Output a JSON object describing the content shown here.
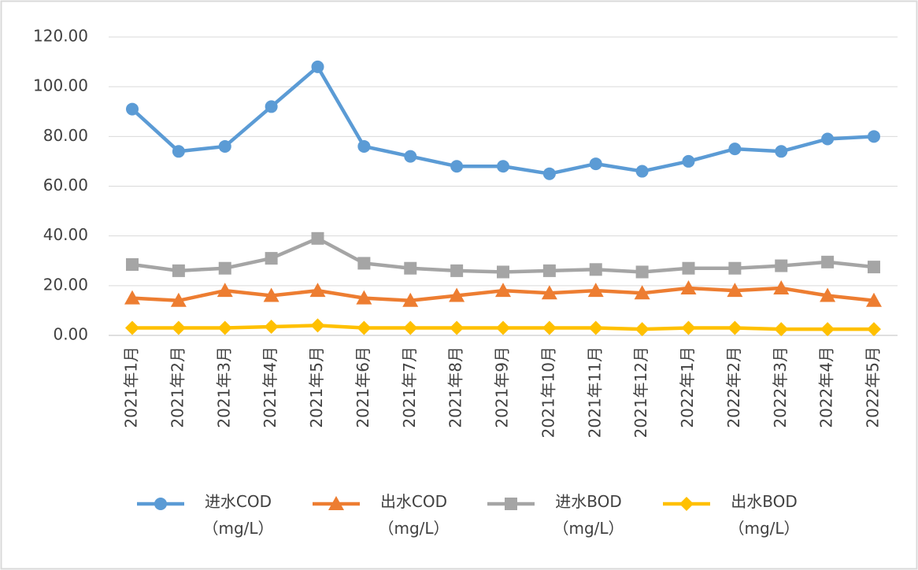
{
  "chart_data": {
    "type": "line",
    "categories": [
      "2021年1月",
      "2021年2月",
      "2021年3月",
      "2021年4月",
      "2021年5月",
      "2021年6月",
      "2021年7月",
      "2021年8月",
      "2021年9月",
      "2021年10月",
      "2021年11月",
      "2021年12月",
      "2022年1月",
      "2022年2月",
      "2022年3月",
      "2022年4月",
      "2022年5月"
    ],
    "series": [
      {
        "name": "进水COD（mg/L）",
        "color": "#5b9bd5",
        "marker": "circle",
        "values": [
          91,
          74,
          76,
          92,
          108,
          76,
          72,
          68,
          68,
          65,
          69,
          66,
          70,
          75,
          74,
          79,
          80
        ]
      },
      {
        "name": "出水COD（mg/L）",
        "color": "#ed7d31",
        "marker": "triangle",
        "values": [
          15,
          14,
          18,
          16,
          18,
          15,
          14,
          16,
          18,
          17,
          18,
          17,
          19,
          18,
          19,
          16,
          14
        ]
      },
      {
        "name": "进水BOD（mg/L）",
        "color": "#a5a5a5",
        "marker": "square",
        "values": [
          28.5,
          26,
          27,
          31,
          39,
          29,
          27,
          26,
          25.5,
          26,
          26.5,
          25.5,
          27,
          27,
          28,
          29.5,
          27.5
        ]
      },
      {
        "name": "出水BOD（mg/L）",
        "color": "#ffc000",
        "marker": "diamond",
        "values": [
          3,
          3,
          3,
          3.5,
          4,
          3,
          3,
          3,
          3,
          3,
          3,
          2.5,
          3,
          3,
          2.5,
          2.5,
          2.5
        ]
      }
    ],
    "ylim": [
      0,
      120
    ],
    "yticks": [
      {
        "value": 0,
        "label": "0.00"
      },
      {
        "value": 20,
        "label": "20.00"
      },
      {
        "value": 40,
        "label": "40.00"
      },
      {
        "value": 60,
        "label": "60.00"
      },
      {
        "value": 80,
        "label": "80.00"
      },
      {
        "value": 100,
        "label": "100.00"
      },
      {
        "value": 120,
        "label": "120.00"
      }
    ],
    "grid": true,
    "legend": "bottom"
  }
}
